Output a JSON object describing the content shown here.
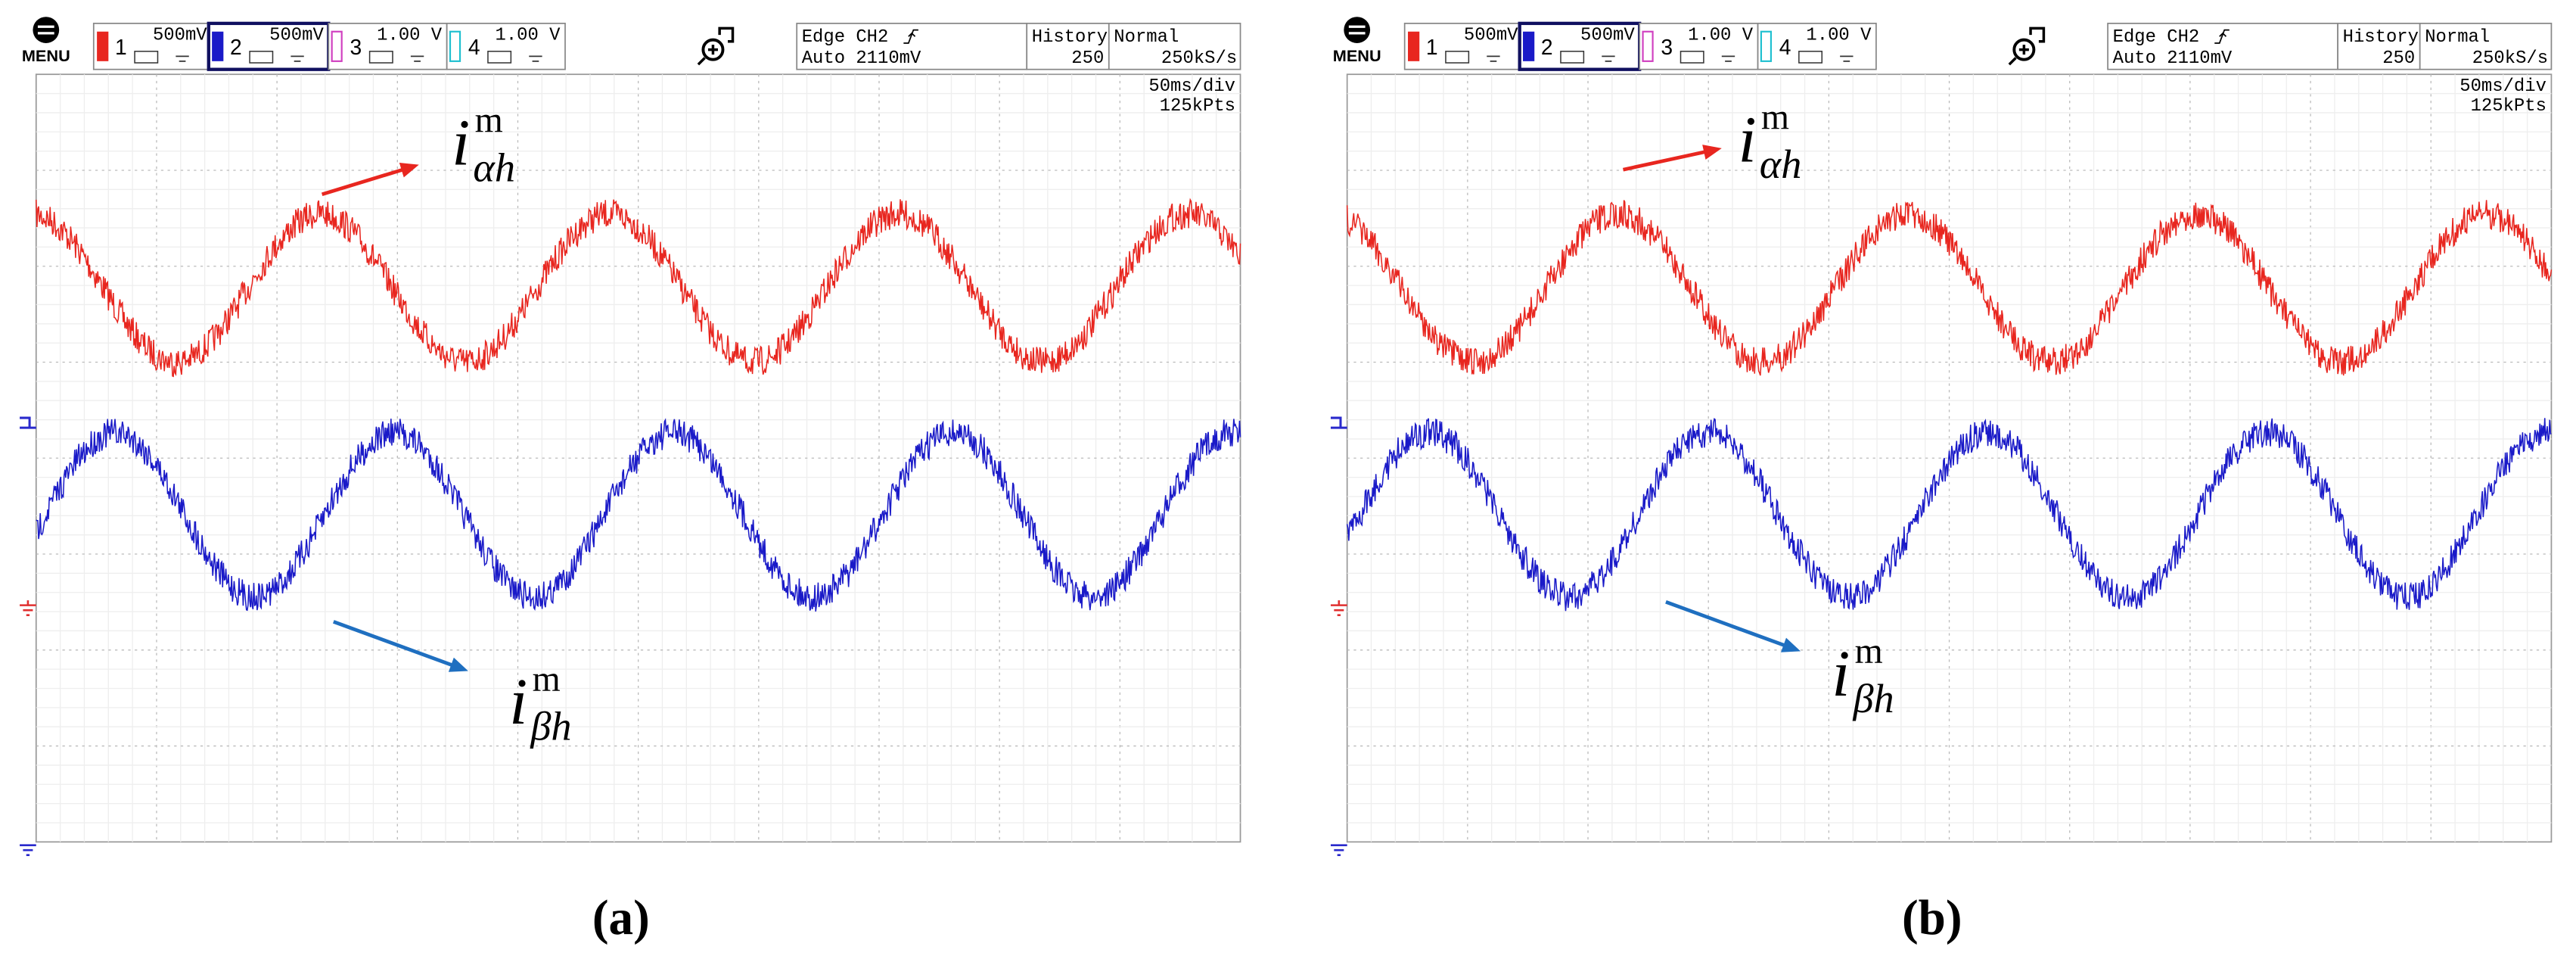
{
  "panels": [
    {
      "menu": "MENU",
      "channels": [
        {
          "number": "1",
          "scale": "500mV"
        },
        {
          "number": "2",
          "scale": "500mV"
        },
        {
          "number": "3",
          "scale": "1.00 V"
        },
        {
          "number": "4",
          "scale": "1.00 V"
        }
      ],
      "trigger": {
        "line1": "Edge CH2",
        "line2": "Auto 2110mV"
      },
      "history": {
        "label": "History",
        "value": "250"
      },
      "mode": {
        "label": "Normal",
        "rate": "250kS/s"
      },
      "timebase": "50ms/div",
      "points": "125kPts",
      "traces": [
        {
          "base": "i",
          "sub": "αh",
          "sup": "m"
        },
        {
          "base": "i",
          "sub": "βh",
          "sup": "m"
        }
      ],
      "caption": "(a)"
    },
    {
      "menu": "MENU",
      "channels": [
        {
          "number": "1",
          "scale": "500mV"
        },
        {
          "number": "2",
          "scale": "500mV"
        },
        {
          "number": "3",
          "scale": "1.00 V"
        },
        {
          "number": "4",
          "scale": "1.00 V"
        }
      ],
      "trigger": {
        "line1": "Edge CH2",
        "line2": "Auto 2110mV"
      },
      "history": {
        "label": "History",
        "value": "250"
      },
      "mode": {
        "label": "Normal",
        "rate": "250kS/s"
      },
      "timebase": "50ms/div",
      "points": "125kPts",
      "traces": [
        {
          "base": "i",
          "sub": "αh",
          "sup": "m"
        },
        {
          "base": "i",
          "sub": "βh",
          "sup": "m"
        }
      ],
      "caption": "(b)"
    }
  ]
}
